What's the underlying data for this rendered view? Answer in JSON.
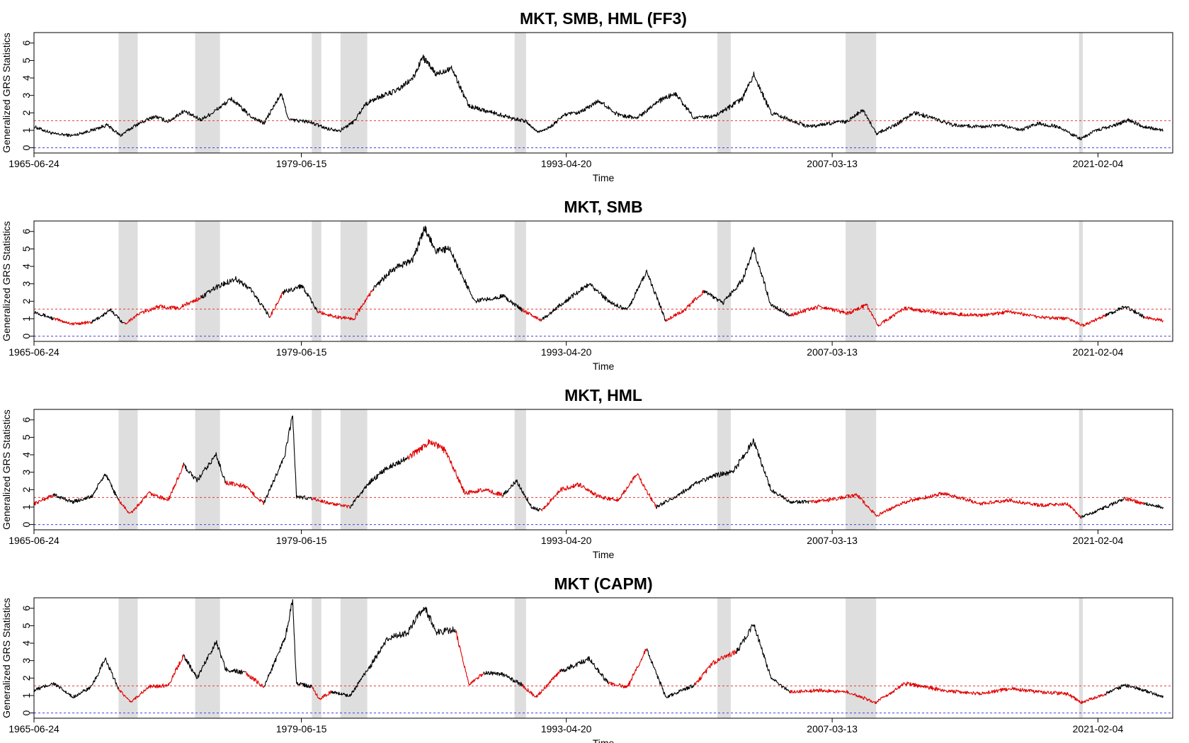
{
  "chart_data": [
    {
      "type": "line",
      "title": "MKT, SMB, HML (FF3)",
      "xlabel": "Time",
      "ylabel": "Generalized GRS Statistics",
      "xticks": [
        "1965-06-24",
        "1979-06-15",
        "1993-04-20",
        "2007-03-13",
        "2021-02-04"
      ],
      "yticks": [
        "0",
        "1",
        "2",
        "3",
        "4",
        "5",
        "6"
      ],
      "xlim": [
        "1965-06-24",
        "2024-12-31"
      ],
      "ylim": [
        -0.3,
        6.6
      ],
      "recession_shading": [
        [
          1969.9,
          1970.9
        ],
        [
          1973.9,
          1975.2
        ],
        [
          1980.0,
          1980.5
        ],
        [
          1981.5,
          1982.9
        ],
        [
          1990.6,
          1991.2
        ],
        [
          2001.2,
          2001.9
        ],
        [
          2007.9,
          2009.5
        ],
        [
          2020.1,
          2020.3
        ]
      ],
      "reference_lines": [
        {
          "y": 1.55,
          "color": "#e03c3c",
          "style": "dashed"
        },
        {
          "y": 0,
          "color": "#4040e0",
          "style": "dashed"
        }
      ],
      "series": [
        {
          "color": "#000000",
          "x": [
            1965.5,
            1966.5,
            1967.5,
            1968.5,
            1969.3,
            1970.0,
            1970.8,
            1971.8,
            1972.5,
            1973.3,
            1974.2,
            1974.8,
            1975.8,
            1976.8,
            1977.5,
            1978.4,
            1978.8,
            1979.8,
            1980.8,
            1981.5,
            1982.2,
            1982.8,
            1983.5,
            1984.5,
            1985.3,
            1985.8,
            1986.5,
            1987.3,
            1988.2,
            1989.5,
            1990.5,
            1991.2,
            1991.8,
            1992.5,
            1993.2,
            1994.0,
            1995.0,
            1996.0,
            1997.0,
            1998.0,
            1999.0,
            2000.0,
            2001.0,
            2001.8,
            2002.5,
            2003.1,
            2004.0,
            2005.0,
            2006.0,
            2007.0,
            2008.0,
            2008.8,
            2009.5,
            2010.5,
            2011.5,
            2012.5,
            2013.5,
            2015.0,
            2016.0,
            2017.0,
            2018.0,
            2019.0,
            2020.2,
            2021.0,
            2022.0,
            2022.7,
            2023.5,
            2024.5
          ],
          "y": [
            1.2,
            0.8,
            0.7,
            1.0,
            1.3,
            0.7,
            1.3,
            1.8,
            1.5,
            2.1,
            1.6,
            2.0,
            2.8,
            1.8,
            1.4,
            3.1,
            1.6,
            1.5,
            1.1,
            1.0,
            1.5,
            2.5,
            2.9,
            3.3,
            4.0,
            5.2,
            4.2,
            4.6,
            2.4,
            2.0,
            1.7,
            1.5,
            0.9,
            1.2,
            1.9,
            2.0,
            2.7,
            1.9,
            1.7,
            2.6,
            3.1,
            1.7,
            1.8,
            2.3,
            2.8,
            4.2,
            2.0,
            1.6,
            1.2,
            1.4,
            1.5,
            2.2,
            0.8,
            1.3,
            2.0,
            1.7,
            1.3,
            1.2,
            1.3,
            1.0,
            1.4,
            1.2,
            0.5,
            1.0,
            1.3,
            1.6,
            1.2,
            1.0
          ]
        }
      ]
    },
    {
      "type": "line",
      "title": "MKT, SMB",
      "xlabel": "Time",
      "ylabel": "Generalized GRS Statistics",
      "xticks": [
        "1965-06-24",
        "1979-06-15",
        "1993-04-20",
        "2007-03-13",
        "2021-02-04"
      ],
      "yticks": [
        "0",
        "1",
        "2",
        "3",
        "4",
        "5",
        "6"
      ],
      "xlim": [
        "1965-06-24",
        "2024-12-31"
      ],
      "ylim": [
        -0.3,
        6.6
      ],
      "recession_shading": [
        [
          1969.9,
          1970.9
        ],
        [
          1973.9,
          1975.2
        ],
        [
          1980.0,
          1980.5
        ],
        [
          1981.5,
          1982.9
        ],
        [
          1990.6,
          1991.2
        ],
        [
          2001.2,
          2001.9
        ],
        [
          2007.9,
          2009.5
        ],
        [
          2020.1,
          2020.3
        ]
      ],
      "reference_lines": [
        {
          "y": 1.55,
          "color": "#e03c3c",
          "style": "dashed"
        },
        {
          "y": 0,
          "color": "#4040e0",
          "style": "dashed"
        }
      ],
      "series": [
        {
          "color": "#000000",
          "highlight_color": "#e00000",
          "x": [
            1965.5,
            1966.5,
            1967.5,
            1968.5,
            1969.5,
            1970.2,
            1971.0,
            1972.0,
            1973.0,
            1974.2,
            1975.0,
            1976.0,
            1976.8,
            1977.8,
            1978.5,
            1979.5,
            1980.3,
            1981.3,
            1982.2,
            1983.2,
            1984.2,
            1985.3,
            1985.9,
            1986.5,
            1987.2,
            1988.5,
            1990.0,
            1991.0,
            1992.0,
            1993.0,
            1994.5,
            1995.5,
            1996.5,
            1997.5,
            1998.5,
            1999.5,
            2000.5,
            2001.5,
            2002.5,
            2003.1,
            2004.0,
            2005.0,
            2006.5,
            2008.0,
            2009.0,
            2009.6,
            2011.0,
            2013.0,
            2015.0,
            2016.5,
            2018.0,
            2019.5,
            2020.3,
            2021.5,
            2022.5,
            2023.5,
            2024.5
          ],
          "y": [
            1.4,
            1.0,
            0.7,
            0.8,
            1.5,
            0.7,
            1.3,
            1.7,
            1.6,
            2.2,
            2.8,
            3.3,
            2.7,
            1.1,
            2.5,
            2.9,
            1.4,
            1.1,
            1.0,
            2.7,
            3.8,
            4.4,
            6.2,
            4.9,
            5.0,
            2.0,
            2.3,
            1.5,
            0.9,
            1.8,
            3.0,
            2.0,
            1.5,
            3.7,
            0.9,
            1.5,
            2.6,
            1.9,
            3.2,
            5.0,
            1.8,
            1.2,
            1.7,
            1.3,
            1.8,
            0.6,
            1.6,
            1.3,
            1.2,
            1.4,
            1.1,
            1.0,
            0.6,
            1.2,
            1.7,
            1.1,
            0.9
          ],
          "highlight": [
            0,
            1,
            1,
            0,
            0,
            1,
            1,
            1,
            1,
            0,
            0,
            0,
            0,
            1,
            0,
            0,
            1,
            1,
            1,
            0,
            0,
            0,
            0,
            0,
            0,
            0,
            0,
            1,
            0,
            0,
            0,
            0,
            0,
            0,
            1,
            1,
            0,
            0,
            0,
            0,
            0,
            1,
            1,
            1,
            1,
            1,
            1,
            1,
            1,
            1,
            1,
            1,
            1,
            0,
            0,
            1,
            1
          ]
        }
      ]
    },
    {
      "type": "line",
      "title": "MKT, HML",
      "xlabel": "Time",
      "ylabel": "Generalized GRS Statistics",
      "xticks": [
        "1965-06-24",
        "1979-06-15",
        "1993-04-20",
        "2007-03-13",
        "2021-02-04"
      ],
      "yticks": [
        "0",
        "1",
        "2",
        "3",
        "4",
        "5",
        "6"
      ],
      "xlim": [
        "1965-06-24",
        "2024-12-31"
      ],
      "ylim": [
        -0.3,
        6.6
      ],
      "recession_shading": [
        [
          1969.9,
          1970.9
        ],
        [
          1973.9,
          1975.2
        ],
        [
          1980.0,
          1980.5
        ],
        [
          1981.5,
          1982.9
        ],
        [
          1990.6,
          1991.2
        ],
        [
          2001.2,
          2001.9
        ],
        [
          2007.9,
          2009.5
        ],
        [
          2020.1,
          2020.3
        ]
      ],
      "reference_lines": [
        {
          "y": 1.55,
          "color": "#e03c3c",
          "style": "dashed"
        },
        {
          "y": 0,
          "color": "#4040e0",
          "style": "dashed"
        }
      ],
      "series": [
        {
          "color": "#000000",
          "highlight_color": "#e00000",
          "x": [
            1965.5,
            1966.5,
            1967.5,
            1968.5,
            1969.2,
            1969.9,
            1970.5,
            1971.5,
            1972.5,
            1973.3,
            1974.0,
            1975.0,
            1975.5,
            1976.5,
            1977.5,
            1978.6,
            1979.0,
            1979.2,
            1980.0,
            1981.0,
            1982.0,
            1983.0,
            1984.0,
            1985.0,
            1985.5,
            1986.2,
            1987.0,
            1988.0,
            1989.0,
            1990.0,
            1990.7,
            1991.5,
            1992.0,
            1993.0,
            1994.0,
            1995.0,
            1996.0,
            1997.0,
            1998.0,
            1999.0,
            2000.0,
            2001.0,
            2002.0,
            2003.1,
            2004.0,
            2005.0,
            2006.0,
            2007.0,
            2008.5,
            2009.5,
            2011.0,
            2013.0,
            2015.0,
            2016.5,
            2018.0,
            2019.5,
            2020.2,
            2021.5,
            2022.5,
            2023.5,
            2024.5
          ],
          "y": [
            1.2,
            1.7,
            1.3,
            1.6,
            2.9,
            1.4,
            0.6,
            1.8,
            1.4,
            3.4,
            2.5,
            4.0,
            2.4,
            2.2,
            1.2,
            4.0,
            6.3,
            1.6,
            1.5,
            1.2,
            1.0,
            2.4,
            3.3,
            3.8,
            4.2,
            4.8,
            4.2,
            1.8,
            2.0,
            1.7,
            2.5,
            1.0,
            0.8,
            2.0,
            2.3,
            1.6,
            1.4,
            2.9,
            1.0,
            1.6,
            2.3,
            2.8,
            3.0,
            4.8,
            2.0,
            1.3,
            1.3,
            1.4,
            1.7,
            0.5,
            1.3,
            1.8,
            1.2,
            1.4,
            1.1,
            1.2,
            0.4,
            1.0,
            1.5,
            1.2,
            1.0
          ],
          "highlight": [
            1,
            0,
            0,
            0,
            0,
            1,
            1,
            1,
            1,
            0,
            0,
            0,
            1,
            1,
            0,
            0,
            0,
            0,
            1,
            1,
            0,
            0,
            0,
            1,
            1,
            1,
            1,
            1,
            1,
            0,
            0,
            0,
            1,
            1,
            1,
            1,
            1,
            1,
            0,
            0,
            0,
            0,
            0,
            0,
            0,
            0,
            1,
            1,
            1,
            1,
            1,
            1,
            1,
            1,
            1,
            1,
            0,
            0,
            1,
            0,
            0
          ]
        }
      ]
    },
    {
      "type": "line",
      "title": "MKT (CAPM)",
      "xlabel": "Time",
      "ylabel": "Generalized GRS Statistics",
      "xticks": [
        "1965-06-24",
        "1979-06-15",
        "1993-04-20",
        "2007-03-13",
        "2021-02-04"
      ],
      "yticks": [
        "0",
        "1",
        "2",
        "3",
        "4",
        "5",
        "6"
      ],
      "xlim": [
        "1965-06-24",
        "2024-12-31"
      ],
      "ylim": [
        -0.3,
        6.6
      ],
      "recession_shading": [
        [
          1969.9,
          1970.9
        ],
        [
          1973.9,
          1975.2
        ],
        [
          1980.0,
          1980.5
        ],
        [
          1981.5,
          1982.9
        ],
        [
          1990.6,
          1991.2
        ],
        [
          2001.2,
          2001.9
        ],
        [
          2007.9,
          2009.5
        ],
        [
          2020.1,
          2020.3
        ]
      ],
      "reference_lines": [
        {
          "y": 1.55,
          "color": "#e03c3c",
          "style": "dashed"
        },
        {
          "y": 0,
          "color": "#4040e0",
          "style": "dashed"
        }
      ],
      "series": [
        {
          "color": "#000000",
          "highlight_color": "#e00000",
          "x": [
            1965.5,
            1966.5,
            1967.5,
            1968.5,
            1969.2,
            1969.9,
            1970.5,
            1971.5,
            1972.5,
            1973.3,
            1974.0,
            1975.0,
            1975.5,
            1976.5,
            1977.5,
            1978.6,
            1979.0,
            1979.2,
            1980.0,
            1980.4,
            1981.0,
            1982.0,
            1983.0,
            1984.0,
            1985.0,
            1985.9,
            1986.5,
            1987.5,
            1988.2,
            1989.0,
            1990.0,
            1991.0,
            1991.7,
            1993.0,
            1994.5,
            1995.5,
            1996.5,
            1997.5,
            1998.5,
            2000.0,
            2001.0,
            2002.2,
            2003.1,
            2004.0,
            2005.0,
            2006.5,
            2008.0,
            2009.5,
            2011.0,
            2013.0,
            2015.0,
            2016.5,
            2018.0,
            2019.5,
            2020.2,
            2021.5,
            2022.5,
            2023.5,
            2024.5
          ],
          "y": [
            1.3,
            1.7,
            0.9,
            1.5,
            3.1,
            1.4,
            0.6,
            1.5,
            1.6,
            3.3,
            2.0,
            4.1,
            2.5,
            2.3,
            1.5,
            4.3,
            6.5,
            1.7,
            1.5,
            0.8,
            1.2,
            1.0,
            2.6,
            4.3,
            4.6,
            6.1,
            4.6,
            4.8,
            1.6,
            2.3,
            2.2,
            1.6,
            0.9,
            2.4,
            3.1,
            1.7,
            1.5,
            3.7,
            0.9,
            1.6,
            2.9,
            3.5,
            5.1,
            2.0,
            1.2,
            1.3,
            1.2,
            0.6,
            1.7,
            1.3,
            1.1,
            1.4,
            1.2,
            1.1,
            0.6,
            1.1,
            1.6,
            1.3,
            0.9
          ],
          "highlight": [
            0,
            0,
            0,
            0,
            0,
            1,
            1,
            1,
            1,
            0,
            0,
            0,
            0,
            1,
            0,
            0,
            0,
            0,
            1,
            1,
            0,
            0,
            0,
            0,
            0,
            0,
            0,
            1,
            1,
            0,
            0,
            1,
            1,
            0,
            0,
            1,
            1,
            0,
            0,
            1,
            1,
            0,
            0,
            0,
            1,
            1,
            1,
            1,
            1,
            1,
            1,
            1,
            1,
            1,
            1,
            0,
            0,
            0,
            0
          ]
        }
      ]
    }
  ]
}
